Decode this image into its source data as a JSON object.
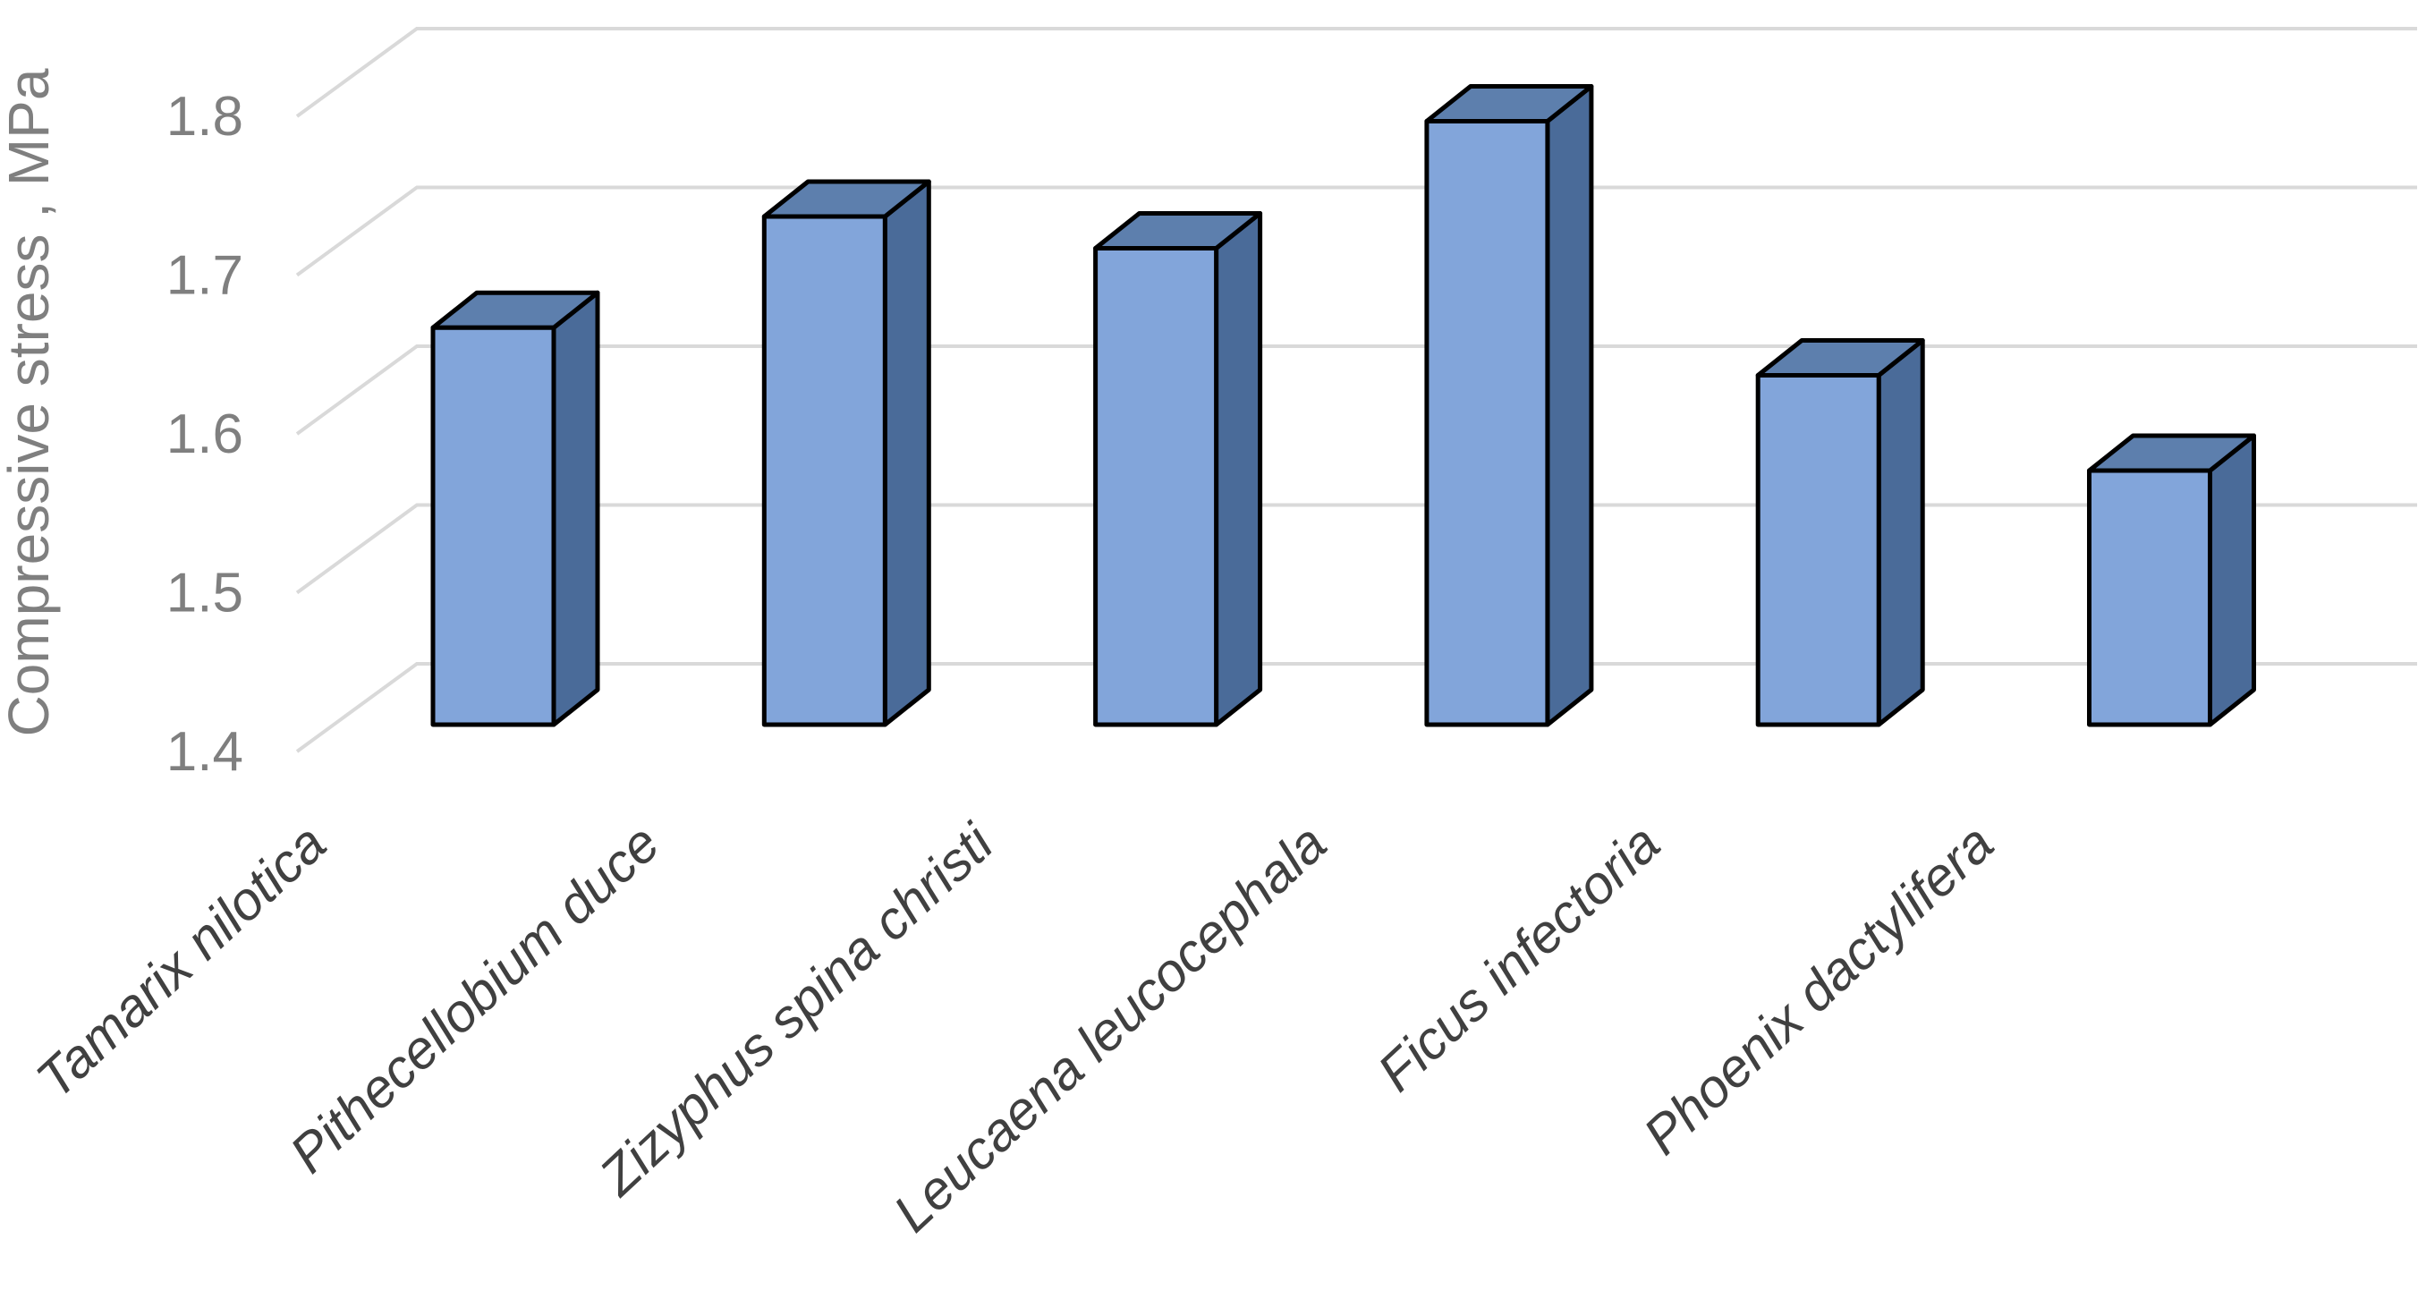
{
  "chart_data": {
    "type": "bar",
    "variant": "3d-column",
    "title": "",
    "ylabel": "Compressive stress , MPa",
    "xlabel": "",
    "categories": [
      "Tamarix nilotica",
      "Pithecellobium duce",
      "Zizyphus spina christi",
      "Leucaena leucocephala",
      "Ficus infectoria",
      "Phoenix dactylifera"
    ],
    "series_name": "Compressive stress",
    "values": [
      1.65,
      1.72,
      1.7,
      1.78,
      1.62,
      1.56
    ],
    "ytick_labels": [
      "1.8",
      "1.7",
      "1.6",
      "1.5",
      "1.4"
    ],
    "ylim": [
      1.4,
      1.85
    ],
    "grid": true,
    "legend": false,
    "category_label_style": "italic, rotated 45 degrees",
    "colors": {
      "bar_front": "#82A5DA",
      "bar_top": "#5D7FAD",
      "bar_side": "#4A6B99",
      "bar_outline": "#000000",
      "gridline": "#D9D9D9",
      "tick_text": "#7F7F7F",
      "axis_title_text": "#7F7F7F",
      "category_text": "#404040",
      "background": "#FFFFFF"
    }
  }
}
